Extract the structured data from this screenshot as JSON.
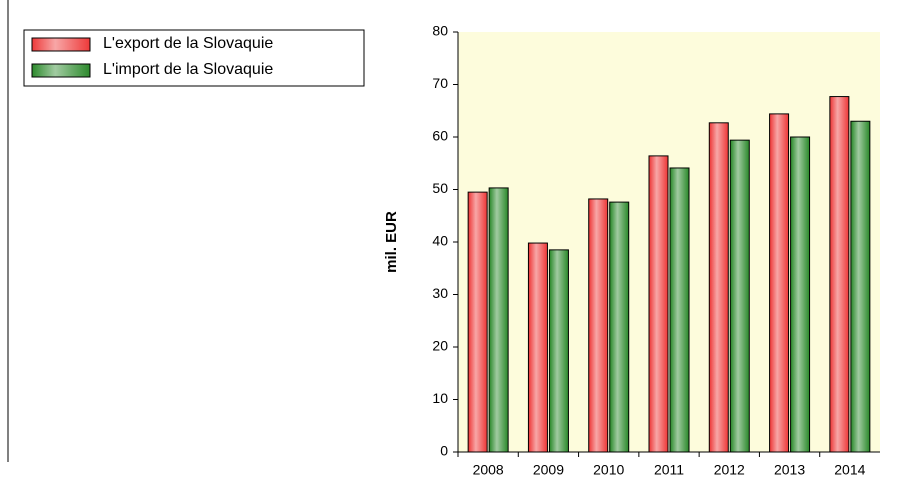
{
  "chart_data": {
    "type": "bar",
    "y_label": "mil. EUR",
    "categories": [
      "2008",
      "2009",
      "2010",
      "2011",
      "2012",
      "2013",
      "2014"
    ],
    "series": [
      {
        "name": "L'export de la Slovaquie",
        "color": "#ee3b3b",
        "values": [
          49.5,
          39.8,
          48.2,
          56.4,
          62.7,
          64.4,
          67.7
        ]
      },
      {
        "name": "L'import de la Slovaquie",
        "color": "#2e8b2e",
        "values": [
          50.3,
          38.5,
          47.6,
          54.1,
          59.4,
          60.0,
          63.0
        ]
      }
    ],
    "ylim": [
      0,
      80
    ],
    "yticks": [
      0,
      10,
      20,
      30,
      40,
      50,
      60,
      70,
      80
    ],
    "plot_background": "#fdfcdc",
    "legend": "top-left"
  }
}
